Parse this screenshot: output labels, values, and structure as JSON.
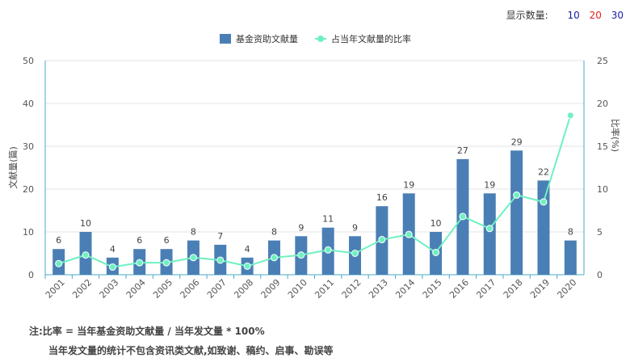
{
  "display_count": {
    "label": "显示数量:",
    "options": [
      {
        "label": "10",
        "color": "#1a1aa6"
      },
      {
        "label": "20",
        "color": "#e8231e"
      },
      {
        "label": "30",
        "color": "#1a1aa6"
      }
    ]
  },
  "notes": {
    "line1": "注:比率 = 当年基金资助文献量 / 当年发文量 * 100%",
    "line2": "当年发文量的统计不包含资讯类文献,如致谢、稿约、启事、勘误等"
  },
  "chart_data": {
    "type": "bar",
    "categories": [
      "2001",
      "2002",
      "2003",
      "2004",
      "2005",
      "2006",
      "2007",
      "2008",
      "2009",
      "2010",
      "2011",
      "2012",
      "2013",
      "2014",
      "2015",
      "2016",
      "2017",
      "2018",
      "2019",
      "2020"
    ],
    "series": [
      {
        "name": "基金资助文献量",
        "type": "bar",
        "axis": "left",
        "color": "#4a7fb5",
        "values": [
          6,
          10,
          4,
          6,
          6,
          8,
          7,
          4,
          8,
          9,
          11,
          9,
          16,
          19,
          10,
          27,
          19,
          29,
          22,
          8
        ]
      },
      {
        "name": "占当年文献量的比率",
        "type": "line",
        "axis": "right",
        "color": "#6ff0c0",
        "values": [
          1.3,
          2.3,
          0.9,
          1.4,
          1.4,
          2.0,
          1.7,
          1.0,
          2.0,
          2.3,
          2.9,
          2.5,
          4.1,
          4.7,
          2.6,
          6.8,
          5.4,
          9.3,
          8.5,
          18.6
        ]
      }
    ],
    "ylabel": "文献量(篇)",
    "y2label": "比率(%)",
    "ylim": [
      0,
      50
    ],
    "y2lim": [
      0,
      25
    ],
    "yticks": [
      "0",
      "10",
      "20",
      "30",
      "40",
      "50"
    ],
    "y2ticks": [
      "0",
      "5",
      "10",
      "15",
      "20",
      "25"
    ],
    "grid": true,
    "legend": "top-center"
  }
}
